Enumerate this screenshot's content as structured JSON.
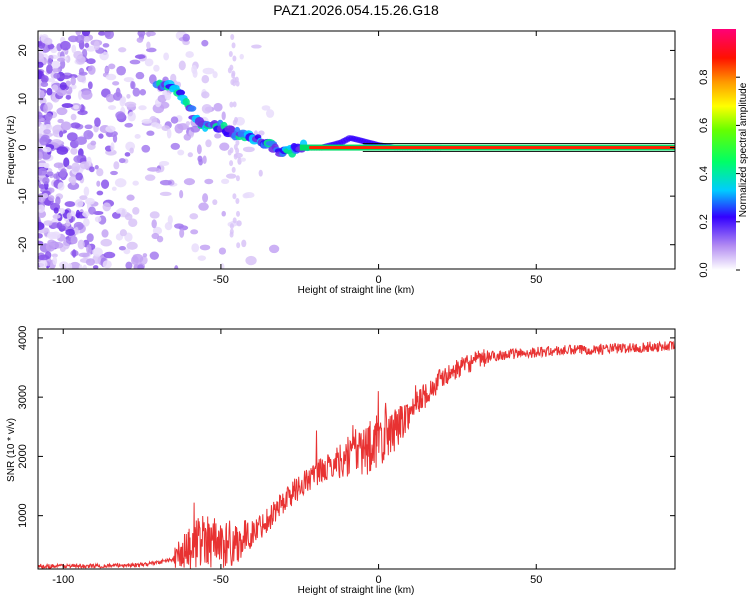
{
  "title": "PAZ1.2026.054.15.26.G18",
  "chart_data": [
    {
      "type": "heatmap",
      "name": "spectrogram",
      "xlabel": "Height of straight line (km)",
      "ylabel": "Frequency (Hz)",
      "xlim": [
        -108,
        94
      ],
      "ylim": [
        -25,
        24
      ],
      "xticks": [
        -100,
        -50,
        0,
        50
      ],
      "yticks": [
        20,
        10,
        0,
        -10,
        -20
      ],
      "xtick_labels": [
        "-100",
        "-50",
        "0",
        "50"
      ],
      "ytick_labels": [
        "20",
        "10",
        "0",
        "-10",
        "-20"
      ],
      "colorbar": {
        "label": "Normalized spectral amplitude",
        "range": [
          0,
          1
        ],
        "ticks": [
          0.0,
          0.2,
          0.4,
          0.6,
          0.8
        ],
        "tick_labels": [
          "0.0",
          "0.2",
          "0.4",
          "0.6",
          "0.8"
        ]
      },
      "ridge": {
        "height_km": [
          -67,
          -63,
          -60,
          -57,
          -54,
          -51,
          -48,
          -45,
          -42,
          -39,
          -36,
          -33,
          -30,
          -27,
          -24,
          -21,
          -18,
          -15,
          -12,
          -9,
          -6,
          -3,
          0,
          5,
          10,
          15,
          20,
          25,
          94
        ],
        "frequency_hz": [
          13,
          11,
          8.5,
          5,
          4,
          4.5,
          3.5,
          3,
          2.5,
          2,
          1,
          0,
          -1,
          -0.5,
          0,
          0,
          0,
          0.5,
          1,
          2,
          1.5,
          1,
          0.5,
          0,
          0,
          0,
          0,
          0,
          0
        ]
      }
    },
    {
      "type": "line",
      "name": "snr",
      "xlabel": "Height of straight line (km)",
      "ylabel": "SNR (10 * v/v)",
      "xlim": [
        -108,
        94
      ],
      "ylim": [
        100,
        4150
      ],
      "xticks": [
        -100,
        -50,
        0,
        50
      ],
      "yticks": [
        1000,
        2000,
        3000,
        4000
      ],
      "xtick_labels": [
        "-100",
        "-50",
        "0",
        "50"
      ],
      "ytick_labels": [
        "1000",
        "2000",
        "3000",
        "4000"
      ],
      "color": "#e83232",
      "trend": {
        "height_km": [
          -108,
          -90,
          -75,
          -65,
          -60,
          -55,
          -50,
          -45,
          -40,
          -35,
          -30,
          -25,
          -20,
          -15,
          -10,
          -5,
          0,
          5,
          10,
          15,
          20,
          25,
          30,
          35,
          40,
          50,
          60,
          70,
          80,
          94
        ],
        "snr": [
          150,
          150,
          170,
          260,
          450,
          650,
          500,
          550,
          700,
          950,
          1250,
          1500,
          1700,
          1850,
          2000,
          2100,
          2250,
          2450,
          2750,
          3050,
          3300,
          3480,
          3600,
          3680,
          3720,
          3760,
          3790,
          3810,
          3830,
          3870
        ]
      }
    }
  ]
}
